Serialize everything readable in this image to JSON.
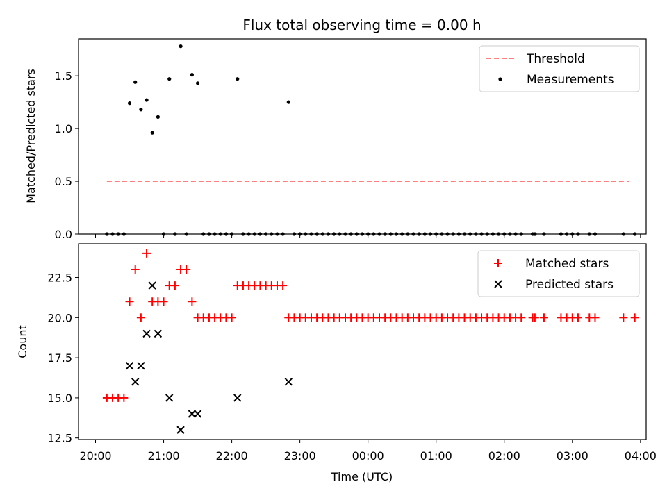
{
  "figure": {
    "title": "Flux total observing time = 0.00 h"
  },
  "chart_data": [
    {
      "type": "scatter",
      "ylabel": "Matched/Predicted stars",
      "xlabel": "",
      "ylim": [
        0,
        1.85
      ],
      "yticks": [
        "0.0",
        "0.5",
        "1.0",
        "1.5"
      ],
      "ytick_values": [
        0,
        0.5,
        1.0,
        1.5
      ],
      "legend_position": "top-right",
      "grid": false,
      "series": [
        {
          "name": "Threshold",
          "kind": "dashed-line",
          "color": "#ff7f7f",
          "x": [
            "20:10",
            "03:50"
          ],
          "y": [
            0.5,
            0.5
          ]
        },
        {
          "name": "Measurements",
          "kind": "dots",
          "color": "#000000",
          "x": [
            "20:10",
            "20:15",
            "20:20",
            "20:25",
            "20:30",
            "20:35",
            "20:40",
            "20:45",
            "20:50",
            "20:55",
            "21:00",
            "21:05",
            "21:10",
            "21:15",
            "21:20",
            "21:25",
            "21:30",
            "21:35",
            "21:40",
            "21:45",
            "21:50",
            "21:55",
            "22:00",
            "22:05",
            "22:10",
            "22:15",
            "22:20",
            "22:25",
            "22:30",
            "22:35",
            "22:40",
            "22:45",
            "22:50",
            "22:55",
            "23:00",
            "23:05",
            "23:10",
            "23:15",
            "23:20",
            "23:25",
            "23:30",
            "23:35",
            "23:40",
            "23:45",
            "23:50",
            "23:55",
            "00:00",
            "00:05",
            "00:10",
            "00:15",
            "00:20",
            "00:25",
            "00:30",
            "00:35",
            "00:40",
            "00:45",
            "00:50",
            "00:55",
            "01:00",
            "01:05",
            "01:10",
            "01:15",
            "01:20",
            "01:25",
            "01:30",
            "01:35",
            "01:40",
            "01:45",
            "01:50",
            "01:55",
            "02:00",
            "02:05",
            "02:10",
            "02:15",
            "02:25",
            "02:27",
            "02:35",
            "02:50",
            "02:55",
            "03:00",
            "03:05",
            "03:15",
            "03:20",
            "03:45",
            "03:55"
          ],
          "y": [
            0,
            0,
            0,
            0,
            1.24,
            1.44,
            1.18,
            1.27,
            0.96,
            1.11,
            0,
            1.47,
            0,
            1.78,
            0,
            1.51,
            1.43,
            0,
            0,
            0,
            0,
            0,
            0,
            1.47,
            0,
            0,
            0,
            0,
            0,
            0,
            0,
            0,
            1.25,
            0,
            0,
            0,
            0,
            0,
            0,
            0,
            0,
            0,
            0,
            0,
            0,
            0,
            0,
            0,
            0,
            0,
            0,
            0,
            0,
            0,
            0,
            0,
            0,
            0,
            0,
            0,
            0,
            0,
            0,
            0,
            0,
            0,
            0,
            0,
            0,
            0,
            0,
            0,
            0,
            0,
            0,
            0,
            0,
            0,
            0,
            0,
            0,
            0,
            0,
            0,
            0
          ]
        }
      ]
    },
    {
      "type": "scatter",
      "ylabel": "Count",
      "xlabel": "Time (UTC)",
      "ylim": [
        12.4,
        24.6
      ],
      "yticks": [
        "12.5",
        "15.0",
        "17.5",
        "20.0",
        "22.5"
      ],
      "ytick_values": [
        12.5,
        15.0,
        17.5,
        20.0,
        22.5
      ],
      "xticks": [
        "20:00",
        "21:00",
        "22:00",
        "23:00",
        "00:00",
        "01:00",
        "02:00",
        "03:00",
        "04:00"
      ],
      "legend_position": "top-right",
      "grid": false,
      "series": [
        {
          "name": "Matched stars",
          "marker": "plus",
          "color": "#ff0000",
          "x": [
            "20:10",
            "20:15",
            "20:20",
            "20:25",
            "20:30",
            "20:35",
            "20:40",
            "20:45",
            "20:50",
            "20:55",
            "21:00",
            "21:05",
            "21:10",
            "21:15",
            "21:20",
            "21:25",
            "21:30",
            "21:35",
            "21:40",
            "21:45",
            "21:50",
            "21:55",
            "22:00",
            "22:05",
            "22:10",
            "22:15",
            "22:20",
            "22:25",
            "22:30",
            "22:35",
            "22:40",
            "22:45",
            "22:50",
            "22:55",
            "23:00",
            "23:05",
            "23:10",
            "23:15",
            "23:20",
            "23:25",
            "23:30",
            "23:35",
            "23:40",
            "23:45",
            "23:50",
            "23:55",
            "00:00",
            "00:05",
            "00:10",
            "00:15",
            "00:20",
            "00:25",
            "00:30",
            "00:35",
            "00:40",
            "00:45",
            "00:50",
            "00:55",
            "01:00",
            "01:05",
            "01:10",
            "01:15",
            "01:20",
            "01:25",
            "01:30",
            "01:35",
            "01:40",
            "01:45",
            "01:50",
            "01:55",
            "02:00",
            "02:05",
            "02:10",
            "02:15",
            "02:25",
            "02:27",
            "02:35",
            "02:50",
            "02:55",
            "03:00",
            "03:05",
            "03:15",
            "03:20",
            "03:45",
            "03:55"
          ],
          "y": [
            15,
            15,
            15,
            15,
            21,
            23,
            20,
            24,
            21,
            21,
            21,
            22,
            22,
            23,
            23,
            21,
            20,
            20,
            20,
            20,
            20,
            20,
            20,
            22,
            22,
            22,
            22,
            22,
            22,
            22,
            22,
            22,
            20,
            20,
            20,
            20,
            20,
            20,
            20,
            20,
            20,
            20,
            20,
            20,
            20,
            20,
            20,
            20,
            20,
            20,
            20,
            20,
            20,
            20,
            20,
            20,
            20,
            20,
            20,
            20,
            20,
            20,
            20,
            20,
            20,
            20,
            20,
            20,
            20,
            20,
            20,
            20,
            20,
            20,
            20,
            20,
            20,
            20,
            20,
            20,
            20,
            20,
            20,
            20,
            20
          ]
        },
        {
          "name": "Predicted stars",
          "marker": "x",
          "color": "#000000",
          "x": [
            "20:30",
            "20:35",
            "20:40",
            "20:45",
            "20:50",
            "20:55",
            "21:05",
            "21:15",
            "21:25",
            "21:30",
            "22:05",
            "22:50"
          ],
          "y": [
            17,
            16,
            17,
            19,
            22,
            19,
            15,
            13,
            14,
            14,
            15,
            16
          ]
        }
      ]
    }
  ]
}
